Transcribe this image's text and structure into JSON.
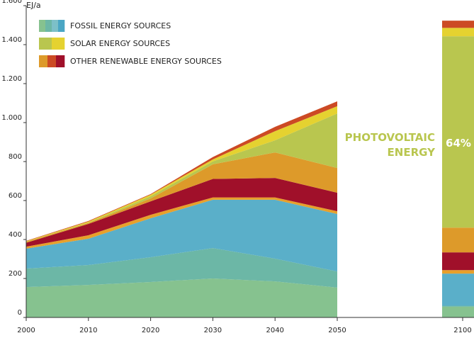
{
  "chart_data": {
    "type": "stacked_area",
    "y_label": "EJ/a",
    "categories": [
      "2000",
      "2010",
      "2020",
      "2030",
      "2040",
      "2050",
      "2100"
    ],
    "legend": [
      {
        "label": "FOSSIL ENERGY SOURCES",
        "colors": [
          "#86c28f",
          "#6cb7a6",
          "#7cc0c8",
          "#4aa6c4"
        ]
      },
      {
        "label": "SOLAR ENERGY SOURCES",
        "colors": [
          "#b9c64f",
          "#e5d230"
        ]
      },
      {
        "label": "OTHER RENEWABLE ENERGY SOURCES",
        "colors": [
          "#dd9a2a",
          "#cc4a24",
          "#a0102a"
        ]
      }
    ],
    "series": [
      {
        "color": "#86c28f",
        "values": [
          156,
          167,
          182,
          200,
          185,
          153,
          55
        ]
      },
      {
        "color": "#6cb7a6",
        "values": [
          95,
          102,
          127,
          156,
          117,
          83,
          5
        ]
      },
      {
        "color": "#5aafc9",
        "values": [
          102,
          135,
          200,
          248,
          302,
          295,
          165
        ]
      },
      {
        "color": "#e7a02b",
        "values": [
          10,
          18,
          18,
          12,
          12,
          14,
          18
        ]
      },
      {
        "color": "#a0102a",
        "values": [
          20,
          58,
          69,
          95,
          100,
          95,
          91
        ]
      },
      {
        "color": "#dd9a2a",
        "values": [
          5,
          5,
          15,
          75,
          131,
          127,
          127
        ]
      },
      {
        "color": "#b9c64f",
        "values": [
          0,
          2,
          11,
          15,
          62,
          280,
          982
        ]
      },
      {
        "color": "#e5d230",
        "values": [
          3,
          5,
          8,
          10,
          47,
          37,
          43
        ]
      },
      {
        "color": "#cc4a24",
        "values": [
          2,
          3,
          3,
          12,
          22,
          25,
          37
        ]
      }
    ],
    "annotations": [
      {
        "text": "PHOTOVOLTAIC",
        "color": "#b9c64f"
      },
      {
        "text": "ENERGY",
        "color": "#b9c64f"
      },
      {
        "text": "64%",
        "color": "#ffffff"
      }
    ],
    "ylim": [
      0,
      1600
    ],
    "yticks": [
      0,
      200,
      400,
      600,
      800,
      {
        "value": 1000,
        "label": "1.000"
      },
      {
        "value": 1200,
        "label": "1.200"
      },
      {
        "value": 1400,
        "label": "1.400"
      },
      {
        "value": 1600,
        "label": "1.600"
      }
    ]
  }
}
